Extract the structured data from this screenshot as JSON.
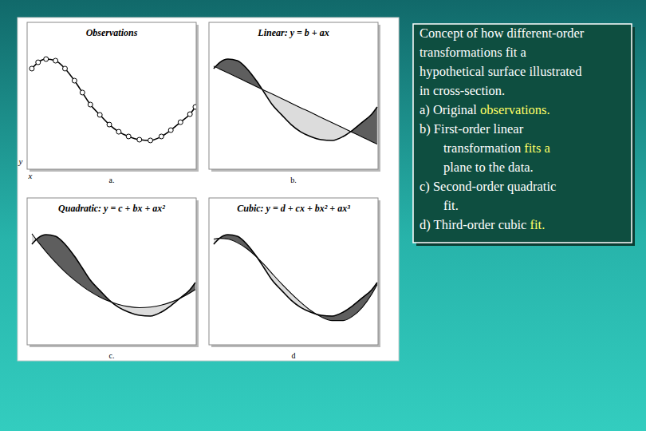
{
  "chart_data": [
    {
      "type": "line",
      "title": "Observations",
      "panel_label": "a.",
      "x_label": "x",
      "y_label": "y",
      "x": [
        0.28,
        0.65,
        1.12,
        1.68,
        2.24,
        2.8,
        3.27,
        3.74,
        4.3,
        4.86,
        5.42,
        6.0,
        6.64,
        7.29,
        7.94,
        8.5,
        9.07,
        9.63,
        9.95
      ],
      "series": [
        {
          "color": "#000000",
          "marker": "circle",
          "values": [
            6.85,
            7.28,
            7.5,
            7.39,
            6.85,
            6.03,
            5.22,
            4.4,
            3.7,
            3.04,
            2.55,
            2.23,
            2.01,
            1.96,
            2.23,
            2.66,
            3.2,
            3.75,
            4.24
          ]
        }
      ],
      "xlim": [
        0,
        10
      ],
      "ylim": [
        0,
        10
      ],
      "tick_labels": false
    },
    {
      "type": "line",
      "title": "Linear: y = b + ax",
      "panel_label": "b.",
      "x": [
        0.28,
        0.65,
        1.12,
        1.68,
        2.24,
        2.8,
        3.27,
        3.74,
        4.3,
        4.86,
        5.42,
        6.0,
        6.64,
        7.29,
        7.94,
        8.5,
        9.07,
        9.63,
        9.95
      ],
      "series": [
        {
          "color": "#000000",
          "values": [
            6.85,
            7.28,
            7.5,
            7.39,
            6.85,
            6.03,
            5.22,
            4.4,
            3.7,
            3.04,
            2.55,
            2.23,
            2.01,
            1.96,
            2.23,
            2.66,
            3.2,
            3.75,
            4.24
          ]
        },
        {
          "color": "#000000",
          "values": [
            7.02,
            6.81,
            6.56,
            6.25,
            5.94,
            5.63,
            5.37,
            5.12,
            4.81,
            4.5,
            4.19,
            3.88,
            3.52,
            3.17,
            2.81,
            2.5,
            2.19,
            1.88,
            1.71
          ]
        }
      ],
      "xlim": [
        0,
        10
      ],
      "ylim": [
        0,
        10
      ],
      "tick_labels": false
    },
    {
      "type": "line",
      "title": "Quadratic: y = c + bx + ax²",
      "panel_label": "c.",
      "x": [
        0.28,
        0.65,
        1.12,
        1.68,
        2.24,
        2.8,
        3.27,
        3.74,
        4.3,
        4.86,
        5.42,
        6.0,
        6.64,
        7.29,
        7.94,
        8.5,
        9.07,
        9.63,
        9.95
      ],
      "series": [
        {
          "color": "#000000",
          "values": [
            6.85,
            7.28,
            7.5,
            7.39,
            6.85,
            6.03,
            5.22,
            4.4,
            3.7,
            3.04,
            2.55,
            2.23,
            2.01,
            1.96,
            2.23,
            2.66,
            3.2,
            3.75,
            4.24
          ]
        },
        {
          "color": "#000000",
          "values": [
            7.56,
            7.0,
            6.34,
            5.62,
            4.97,
            4.41,
            3.99,
            3.62,
            3.25,
            2.96,
            2.74,
            2.6,
            2.53,
            2.57,
            2.7,
            2.9,
            3.18,
            3.53,
            3.76
          ]
        }
      ],
      "xlim": [
        0,
        10
      ],
      "ylim": [
        0,
        10
      ],
      "tick_labels": false
    },
    {
      "type": "line",
      "title": "Cubic: y = d + cx + bx² + ax³",
      "panel_label": "d",
      "x": [
        0.28,
        0.65,
        1.12,
        1.68,
        2.24,
        2.8,
        3.27,
        3.74,
        4.3,
        4.86,
        5.42,
        6.0,
        6.64,
        7.29,
        7.94,
        8.5,
        9.07,
        9.63,
        9.95
      ],
      "series": [
        {
          "color": "#000000",
          "values": [
            6.85,
            7.28,
            7.5,
            7.39,
            6.85,
            6.03,
            5.22,
            4.4,
            3.7,
            3.04,
            2.55,
            2.23,
            2.01,
            1.96,
            2.23,
            2.66,
            3.2,
            3.75,
            4.24
          ]
        },
        {
          "color": "#000000",
          "values": [
            7.2,
            7.25,
            7.2,
            6.95,
            6.55,
            6.0,
            5.45,
            4.85,
            4.15,
            3.5,
            2.9,
            2.35,
            1.9,
            1.65,
            1.65,
            1.95,
            2.55,
            3.45,
            4.1
          ]
        }
      ],
      "xlim": [
        0,
        10
      ],
      "ylim": [
        0,
        10
      ],
      "tick_labels": false
    }
  ],
  "caption": {
    "intro": [
      "Concept of how different-order",
      "transformations fit a",
      "hypothetical surface illustrated",
      "in cross-section."
    ],
    "items": [
      [
        [
          {
            "text": "a) Original "
          },
          {
            "text": "observations.",
            "highlight": true
          }
        ]
      ],
      [
        [
          {
            "text": "b) First-order linear"
          }
        ],
        [
          {
            "text": "transformation "
          },
          {
            "text": "fits a",
            "highlight": true
          }
        ],
        [
          {
            "text": "plane to the data."
          }
        ]
      ],
      [
        [
          {
            "text": "c) Second-order quadratic"
          }
        ],
        [
          {
            "text": "fit."
          }
        ]
      ],
      [
        [
          {
            "text": "d) Third-order cubic "
          },
          {
            "text": "fit.",
            "highlight": true
          }
        ]
      ]
    ]
  }
}
